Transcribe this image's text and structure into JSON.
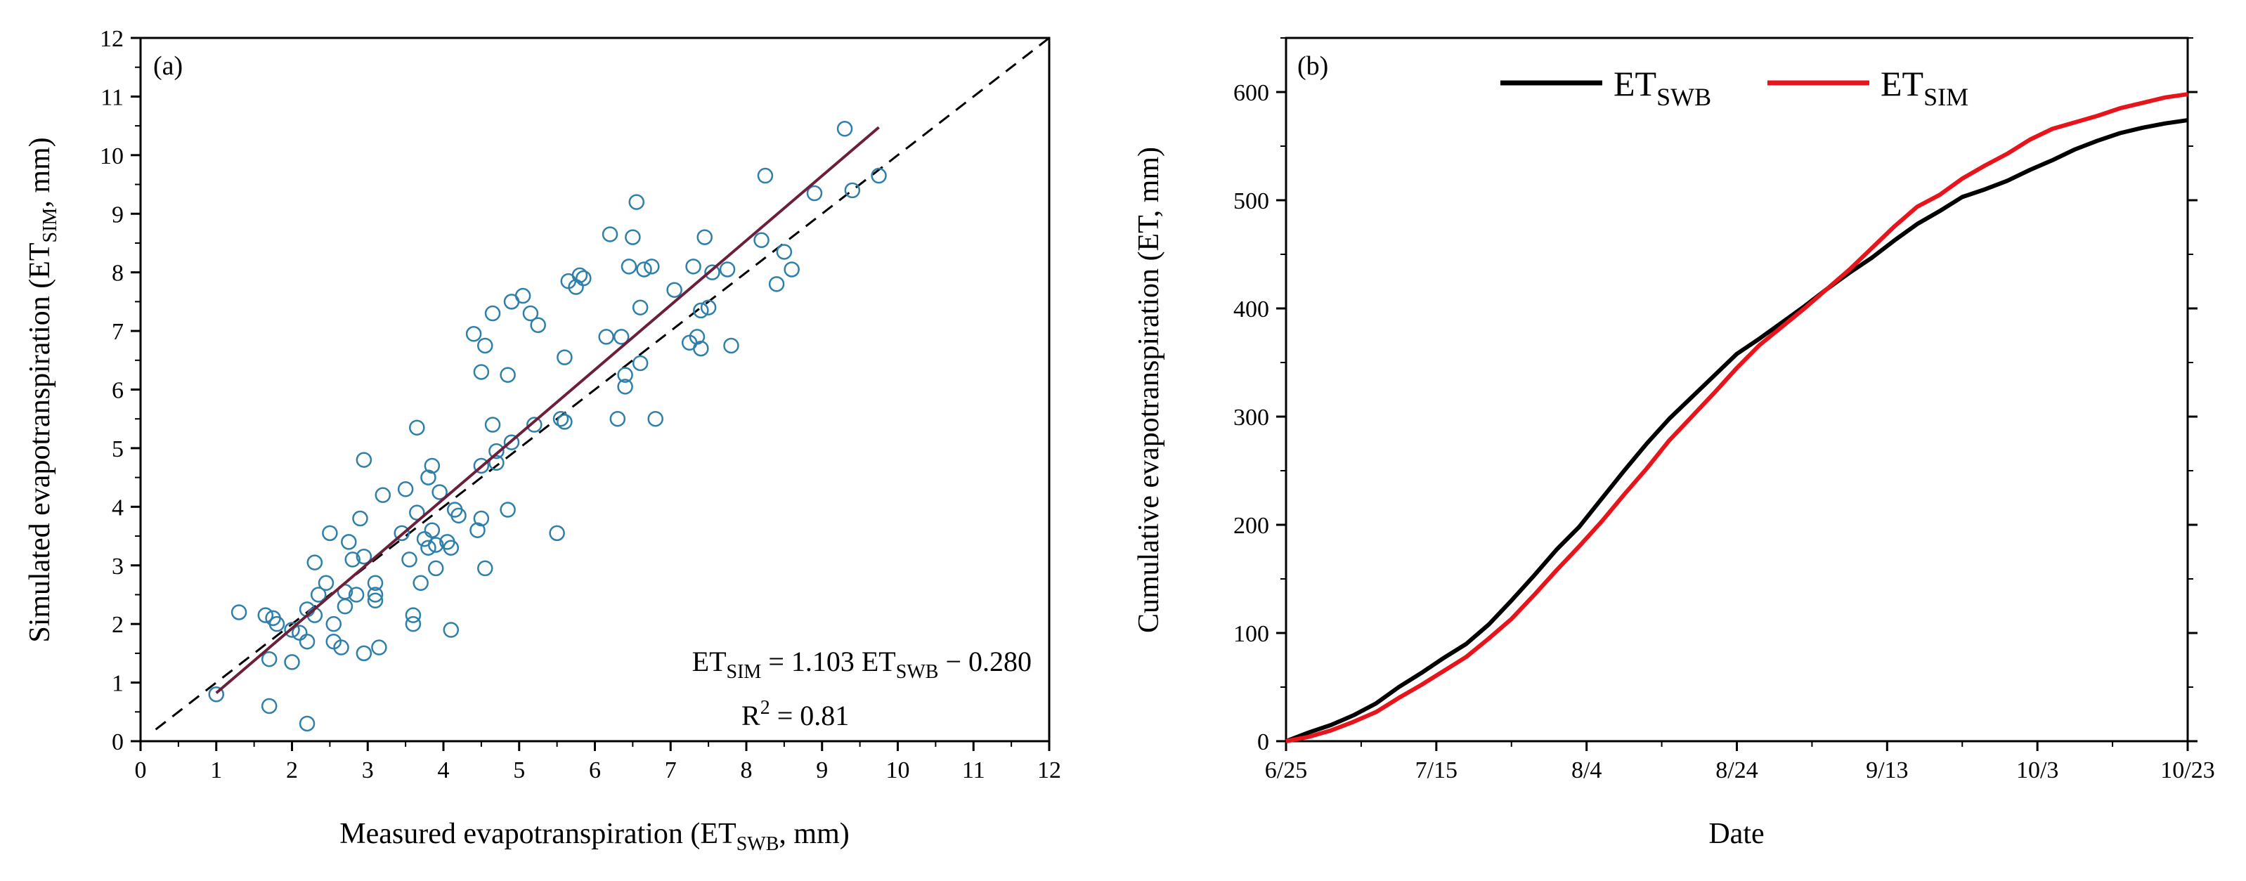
{
  "colors": {
    "marker": "#2f7fab",
    "fit_line": "#6b1f3a",
    "et_swb": "#000000",
    "et_sim": "#e8141b"
  },
  "chart_data": [
    {
      "type": "scatter",
      "panel_label": "(a)",
      "xlabel_main": "Measured evapotranspiration (ET",
      "xlabel_sub": "SWB",
      "xlabel_tail": ", mm)",
      "ylabel_main": "Simulated evapotranspiration (ET",
      "ylabel_sub": "SIM",
      "ylabel_tail": ", mm)",
      "xlim": [
        0,
        12
      ],
      "ylim": [
        0,
        12
      ],
      "xticks": [
        0,
        1,
        2,
        3,
        4,
        5,
        6,
        7,
        8,
        9,
        10,
        11,
        12
      ],
      "yticks": [
        0,
        1,
        2,
        3,
        4,
        5,
        6,
        7,
        8,
        9,
        10,
        11,
        12
      ],
      "one_to_one_line": {
        "x": [
          0.2,
          12
        ],
        "y": [
          0.2,
          12
        ],
        "style": "dashed"
      },
      "fit": {
        "slope": 1.103,
        "intercept": -0.28,
        "x_range": [
          1.0,
          9.75
        ]
      },
      "equation": {
        "lhs": "ET",
        "lhs_sub": "SIM",
        "mid": " = 1.103 ET",
        "mid_sub": "SWB",
        "tail": " − 0.280"
      },
      "r2": {
        "prefix": "R",
        "sup": "2",
        "tail": " = 0.81"
      },
      "points": [
        [
          1.0,
          0.8
        ],
        [
          1.3,
          2.2
        ],
        [
          1.7,
          0.6
        ],
        [
          1.7,
          1.4
        ],
        [
          1.65,
          2.15
        ],
        [
          1.75,
          2.1
        ],
        [
          1.8,
          2.0
        ],
        [
          2.0,
          1.35
        ],
        [
          2.0,
          1.9
        ],
        [
          2.1,
          1.85
        ],
        [
          2.2,
          2.25
        ],
        [
          2.2,
          1.7
        ],
        [
          2.2,
          0.3
        ],
        [
          2.3,
          2.15
        ],
        [
          2.3,
          3.05
        ],
        [
          2.35,
          2.5
        ],
        [
          2.45,
          2.7
        ],
        [
          2.5,
          3.55
        ],
        [
          2.55,
          1.7
        ],
        [
          2.55,
          2.0
        ],
        [
          2.65,
          1.6
        ],
        [
          2.7,
          2.55
        ],
        [
          2.7,
          2.3
        ],
        [
          2.75,
          3.4
        ],
        [
          2.8,
          3.1
        ],
        [
          2.85,
          2.5
        ],
        [
          2.9,
          3.8
        ],
        [
          2.95,
          1.5
        ],
        [
          2.95,
          3.15
        ],
        [
          2.95,
          4.8
        ],
        [
          3.1,
          2.7
        ],
        [
          3.1,
          2.5
        ],
        [
          3.1,
          2.4
        ],
        [
          3.15,
          1.6
        ],
        [
          3.2,
          4.2
        ],
        [
          3.45,
          3.55
        ],
        [
          3.5,
          4.3
        ],
        [
          3.55,
          3.1
        ],
        [
          3.6,
          2.15
        ],
        [
          3.6,
          2.0
        ],
        [
          3.65,
          5.35
        ],
        [
          3.65,
          3.9
        ],
        [
          3.7,
          2.7
        ],
        [
          3.75,
          3.45
        ],
        [
          3.8,
          3.3
        ],
        [
          3.8,
          4.5
        ],
        [
          3.85,
          4.7
        ],
        [
          3.85,
          3.6
        ],
        [
          3.9,
          3.35
        ],
        [
          3.9,
          2.95
        ],
        [
          3.95,
          4.25
        ],
        [
          4.05,
          3.4
        ],
        [
          4.1,
          3.3
        ],
        [
          4.1,
          1.9
        ],
        [
          4.15,
          3.95
        ],
        [
          4.2,
          3.85
        ],
        [
          4.4,
          6.95
        ],
        [
          4.45,
          3.6
        ],
        [
          4.5,
          4.7
        ],
        [
          4.5,
          3.8
        ],
        [
          4.5,
          6.3
        ],
        [
          4.55,
          2.95
        ],
        [
          4.55,
          6.75
        ],
        [
          4.65,
          7.3
        ],
        [
          4.65,
          5.4
        ],
        [
          4.7,
          4.95
        ],
        [
          4.7,
          4.75
        ],
        [
          4.85,
          3.95
        ],
        [
          4.85,
          6.25
        ],
        [
          4.9,
          7.5
        ],
        [
          4.9,
          5.1
        ],
        [
          5.05,
          7.6
        ],
        [
          5.15,
          7.3
        ],
        [
          5.2,
          5.4
        ],
        [
          5.25,
          7.1
        ],
        [
          5.5,
          3.55
        ],
        [
          5.55,
          5.5
        ],
        [
          5.6,
          5.45
        ],
        [
          5.6,
          6.55
        ],
        [
          5.65,
          7.85
        ],
        [
          5.75,
          7.75
        ],
        [
          5.8,
          7.95
        ],
        [
          5.85,
          7.9
        ],
        [
          6.15,
          6.9
        ],
        [
          6.2,
          8.65
        ],
        [
          6.3,
          5.5
        ],
        [
          6.35,
          6.9
        ],
        [
          6.4,
          6.05
        ],
        [
          6.4,
          6.25
        ],
        [
          6.45,
          8.1
        ],
        [
          6.5,
          8.6
        ],
        [
          6.55,
          9.2
        ],
        [
          6.6,
          6.45
        ],
        [
          6.6,
          7.4
        ],
        [
          6.65,
          8.05
        ],
        [
          6.75,
          8.1
        ],
        [
          6.8,
          5.5
        ],
        [
          7.05,
          7.7
        ],
        [
          7.25,
          6.8
        ],
        [
          7.3,
          8.1
        ],
        [
          7.35,
          6.9
        ],
        [
          7.4,
          7.35
        ],
        [
          7.4,
          6.7
        ],
        [
          7.45,
          8.6
        ],
        [
          7.5,
          7.4
        ],
        [
          7.55,
          8.0
        ],
        [
          7.75,
          8.05
        ],
        [
          7.8,
          6.75
        ],
        [
          8.2,
          8.55
        ],
        [
          8.25,
          9.65
        ],
        [
          8.4,
          7.8
        ],
        [
          8.5,
          8.35
        ],
        [
          8.6,
          8.05
        ],
        [
          8.9,
          9.35
        ],
        [
          9.3,
          10.45
        ],
        [
          9.4,
          9.4
        ],
        [
          9.75,
          9.65
        ]
      ]
    },
    {
      "type": "line",
      "panel_label": "(b)",
      "xlabel": "Date",
      "ylabel": "Cumulative evapotranspiration (ET, mm)",
      "xlim": [
        0,
        120
      ],
      "ylim": [
        0,
        650
      ],
      "xticks": [
        {
          "value": 0,
          "label": "6/25"
        },
        {
          "value": 20,
          "label": "7/15"
        },
        {
          "value": 40,
          "label": "8/4"
        },
        {
          "value": 60,
          "label": "8/24"
        },
        {
          "value": 80,
          "label": "9/13"
        },
        {
          "value": 100,
          "label": "10/3"
        },
        {
          "value": 120,
          "label": "10/23"
        }
      ],
      "yticks": [
        0,
        100,
        200,
        300,
        400,
        500,
        600
      ],
      "legend": {
        "placement": "top-center",
        "entries": [
          {
            "main": "ET",
            "sub": "SWB"
          },
          {
            "main": "ET",
            "sub": "SIM"
          }
        ]
      },
      "series": [
        {
          "name": "ET_SWB",
          "x": [
            0,
            3,
            6,
            9,
            12,
            15,
            18,
            21,
            24,
            27,
            30,
            33,
            36,
            39,
            42,
            45,
            48,
            51,
            54,
            57,
            60,
            63,
            66,
            69,
            72,
            75,
            78,
            81,
            84,
            87,
            90,
            93,
            96,
            99,
            102,
            105,
            108,
            111,
            114,
            117,
            120
          ],
          "y": [
            0,
            8,
            15,
            24,
            35,
            50,
            63,
            77,
            90,
            108,
            130,
            153,
            177,
            198,
            224,
            250,
            275,
            298,
            318,
            338,
            358,
            372,
            387,
            402,
            418,
            433,
            447,
            463,
            478,
            490,
            503,
            510,
            518,
            528,
            537,
            547,
            555,
            562,
            567,
            571,
            574
          ]
        },
        {
          "name": "ET_SIM",
          "x": [
            0,
            3,
            6,
            9,
            12,
            15,
            18,
            21,
            24,
            27,
            30,
            33,
            36,
            39,
            42,
            45,
            48,
            51,
            54,
            57,
            60,
            63,
            66,
            69,
            72,
            75,
            78,
            81,
            84,
            87,
            90,
            93,
            96,
            99,
            102,
            105,
            108,
            111,
            114,
            117,
            120
          ],
          "y": [
            0,
            4,
            10,
            18,
            27,
            40,
            52,
            65,
            78,
            95,
            113,
            135,
            158,
            180,
            203,
            228,
            252,
            278,
            300,
            322,
            345,
            366,
            383,
            400,
            418,
            436,
            456,
            476,
            494,
            505,
            520,
            532,
            543,
            556,
            566,
            572,
            578,
            585,
            590,
            595,
            598
          ]
        }
      ]
    }
  ]
}
